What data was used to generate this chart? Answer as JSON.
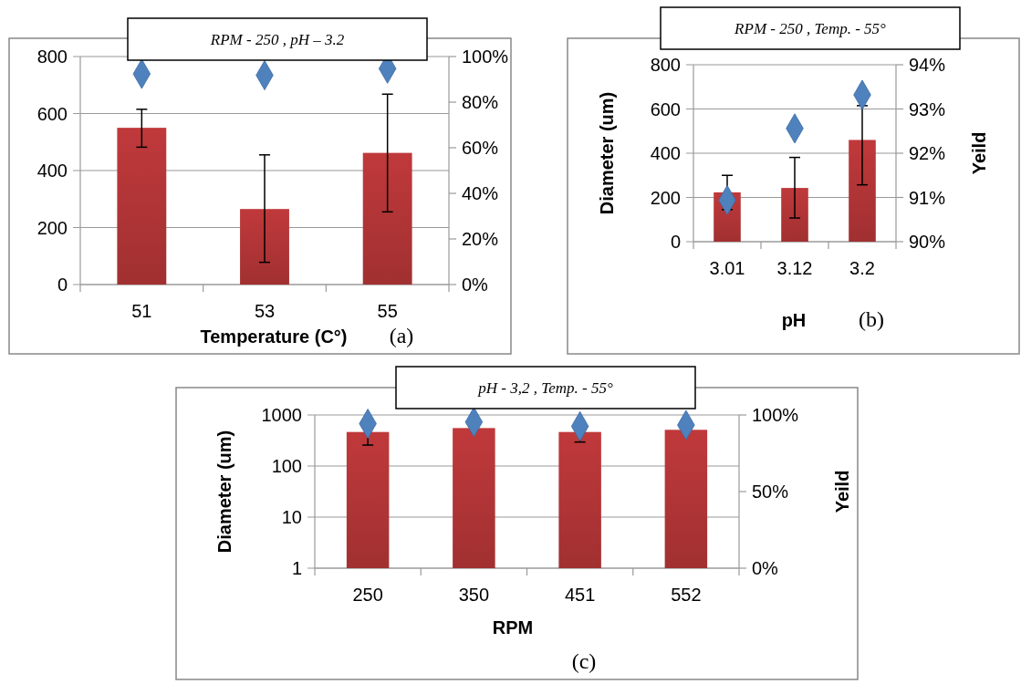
{
  "chart_data": [
    {
      "type": "bar",
      "title": "RPM - 250 , pH – 3.2",
      "xlabel": "Temperature (C°)",
      "categories": [
        "51",
        "53",
        "55"
      ],
      "ylim": [
        0,
        800
      ],
      "yticks": [
        0,
        200,
        400,
        600,
        800
      ],
      "y2lim": [
        0,
        100
      ],
      "y2ticks": [
        {
          "value": 0,
          "label": "0%"
        },
        {
          "value": 20,
          "label": "20%"
        },
        {
          "value": 40,
          "label": "40%"
        },
        {
          "value": 60,
          "label": "60%"
        },
        {
          "value": 80,
          "label": "80%"
        },
        {
          "value": 100,
          "label": "100%"
        }
      ],
      "grid": "y",
      "annotations": [
        "(a)"
      ],
      "series": [
        {
          "color": "#c0393b",
          "values": [
            550,
            265,
            462
          ],
          "errors": [
            [
              482,
              615
            ],
            [
              78,
              455
            ],
            [
              255,
              668
            ]
          ]
        },
        {
          "type": "scatter",
          "axis": "y2",
          "marker": "diamond",
          "color": "#4f81bd",
          "values": [
            92.4,
            91.8,
            94.7
          ]
        }
      ]
    },
    {
      "type": "bar",
      "title": "RPM - 250 , Temp. - 55°",
      "xlabel": "pH",
      "ylabel": "Diameter (um)",
      "y2label": "Yeild",
      "categories": [
        "3.01",
        "3.12",
        "3.2"
      ],
      "ylim": [
        0,
        800
      ],
      "yticks": [
        0,
        200,
        400,
        600,
        800
      ],
      "y2lim": [
        90,
        94
      ],
      "y2ticks": [
        {
          "value": 90,
          "label": "90%"
        },
        {
          "value": 91,
          "label": "91%"
        },
        {
          "value": 92,
          "label": "92%"
        },
        {
          "value": 93,
          "label": "93%"
        },
        {
          "value": 94,
          "label": "94%"
        }
      ],
      "grid": "y",
      "annotations": [
        "(b)"
      ],
      "series": [
        {
          "color": "#c0393b",
          "values": [
            223,
            243,
            460
          ],
          "errors": [
            [
              145,
              300
            ],
            [
              107,
              381
            ],
            [
              257,
              615
            ]
          ]
        },
        {
          "type": "scatter",
          "axis": "y2",
          "marker": "diamond",
          "color": "#4f81bd",
          "values": [
            90.94,
            92.56,
            93.32
          ]
        }
      ]
    },
    {
      "type": "bar",
      "title": "pH - 3,2 , Temp. - 55°",
      "xlabel": "RPM",
      "ylabel": "Diameter (um)",
      "y2label": "Yeild",
      "categories": [
        "250",
        "350",
        "451",
        "552"
      ],
      "log": "y",
      "ylim": [
        1,
        1000
      ],
      "yticks": [
        1,
        10,
        100,
        1000
      ],
      "y2lim": [
        0,
        100
      ],
      "y2ticks": [
        {
          "value": 0,
          "label": "0%"
        },
        {
          "value": 50,
          "label": "50%"
        },
        {
          "value": 100,
          "label": "100%"
        }
      ],
      "grid": "y",
      "annotations": [
        "(c)"
      ],
      "series": [
        {
          "color": "#c0393b",
          "values": [
            464,
            554,
            464,
            512
          ],
          "errors": [
            207,
            null,
            169,
            null
          ]
        },
        {
          "type": "scatter",
          "axis": "y2",
          "marker": "diamond",
          "color": "#4f81bd",
          "values": [
            94.3,
            95.4,
            92.6,
            93.4
          ]
        }
      ]
    }
  ]
}
